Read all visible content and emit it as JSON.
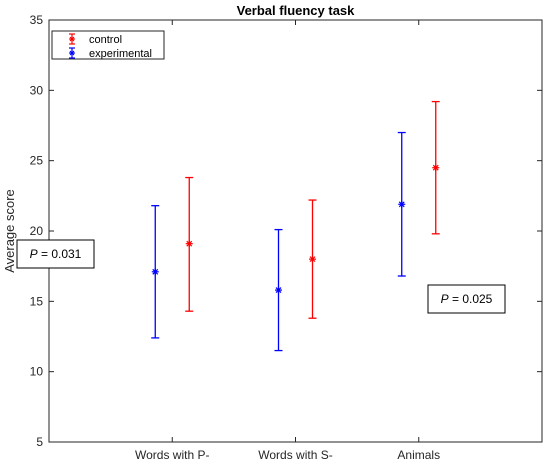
{
  "chart_data": {
    "type": "scatter",
    "title": "Verbal fluency task",
    "xlabel": "",
    "ylabel": "Average score",
    "categories": [
      "Words with P-",
      "Words with S-",
      "Animals"
    ],
    "ylim": [
      5,
      35
    ],
    "yticks": [
      5,
      10,
      15,
      20,
      25,
      30,
      35
    ],
    "grid": false,
    "legend_position": "top-left",
    "series": [
      {
        "name": "control",
        "color": "#ff0000",
        "values": [
          19.1,
          18.0,
          24.5
        ],
        "lower": [
          14.3,
          13.8,
          19.8
        ],
        "upper": [
          23.8,
          22.2,
          29.2
        ]
      },
      {
        "name": "experimental",
        "color": "#0000ff",
        "values": [
          17.1,
          15.8,
          21.9
        ],
        "lower": [
          12.4,
          11.5,
          16.8
        ],
        "upper": [
          21.8,
          20.1,
          27.0
        ]
      }
    ],
    "annotations": [
      {
        "italic": "P",
        "rest": " = 0.031",
        "category": "Words with P-"
      },
      {
        "italic": "P",
        "rest": " = 0.025",
        "category": "Animals"
      }
    ]
  }
}
